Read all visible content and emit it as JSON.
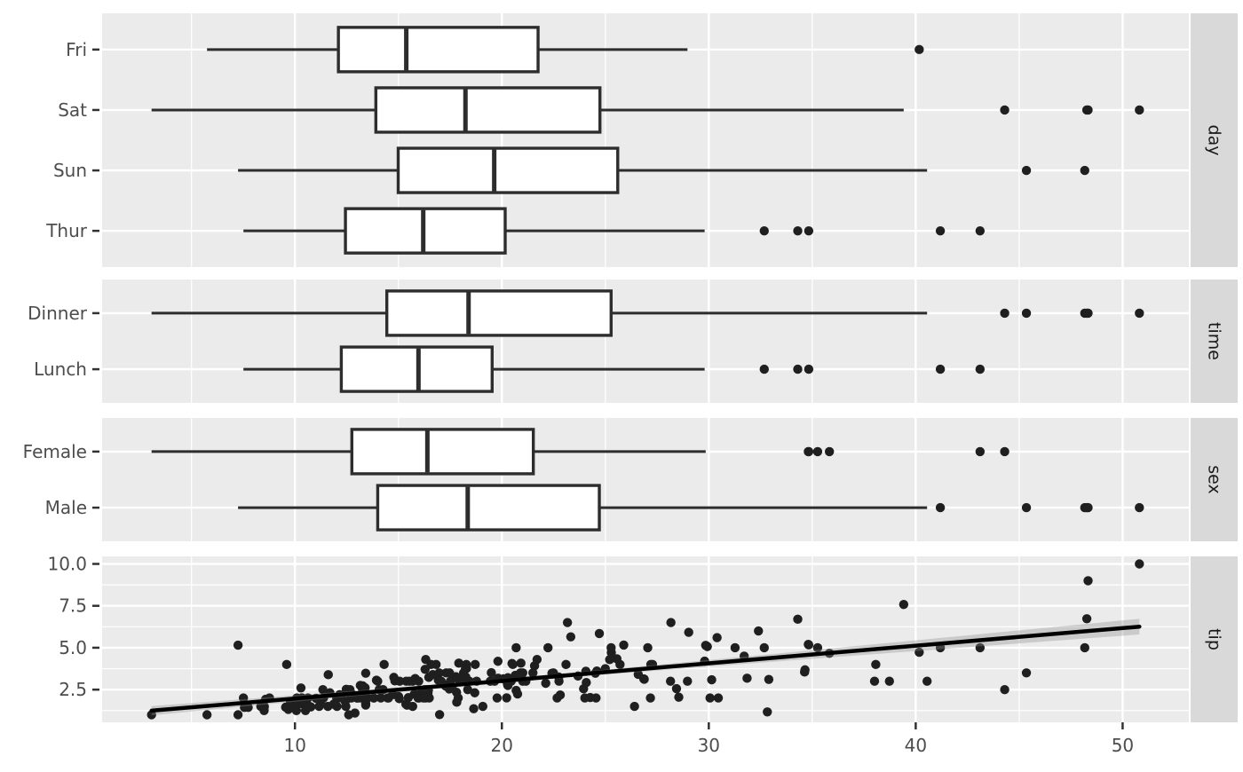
{
  "figure": {
    "background": "#ffffff",
    "panel_bg": "#ebebeb",
    "strip_bg": "#d9d9d9",
    "grid_color": "#ffffff",
    "box_stroke": "#2d2d2d",
    "box_fill": "#ffffff",
    "point_color": "#1f1f1f",
    "line_color": "#000000",
    "band_color": "#8c8c8c",
    "axis_text_color": "#4d4d4d",
    "tick_mark_color": "#333333",
    "strip_text_color": "#1a1a1a"
  },
  "axes": {
    "x": {
      "ticks": [
        10,
        20,
        30,
        40,
        50
      ],
      "minor_ticks": [
        5,
        15,
        25,
        35,
        45
      ],
      "range": [
        0.68,
        53.2
      ]
    }
  },
  "facets": [
    "day",
    "time",
    "sex",
    "tip"
  ],
  "chart_data": [
    {
      "type": "boxplot",
      "facet": "day",
      "orientation": "horizontal",
      "categories": [
        "Fri",
        "Sat",
        "Sun",
        "Thur"
      ],
      "boxes": [
        {
          "category": "Fri",
          "whisker_min": 5.75,
          "q1": 12.1,
          "median": 15.38,
          "q3": 21.75,
          "whisker_max": 28.97,
          "outliers": [
            40.17
          ]
        },
        {
          "category": "Sat",
          "whisker_min": 3.07,
          "q1": 13.91,
          "median": 18.24,
          "q3": 24.74,
          "whisker_max": 39.42,
          "outliers": [
            44.3,
            48.27,
            48.33,
            50.81
          ]
        },
        {
          "category": "Sun",
          "whisker_min": 7.25,
          "q1": 14.99,
          "median": 19.63,
          "q3": 25.6,
          "whisker_max": 40.55,
          "outliers": [
            45.35,
            48.17
          ]
        },
        {
          "category": "Thur",
          "whisker_min": 7.51,
          "q1": 12.44,
          "median": 16.2,
          "q3": 20.16,
          "whisker_max": 29.8,
          "outliers": [
            32.68,
            34.3,
            34.83,
            41.19,
            43.11
          ]
        }
      ]
    },
    {
      "type": "boxplot",
      "facet": "time",
      "orientation": "horizontal",
      "categories": [
        "Dinner",
        "Lunch"
      ],
      "boxes": [
        {
          "category": "Dinner",
          "whisker_min": 3.07,
          "q1": 14.44,
          "median": 18.39,
          "q3": 25.28,
          "whisker_max": 40.55,
          "outliers": [
            44.3,
            45.35,
            48.17,
            48.27,
            48.33,
            50.81
          ]
        },
        {
          "category": "Lunch",
          "whisker_min": 7.51,
          "q1": 12.24,
          "median": 15.97,
          "q3": 19.53,
          "whisker_max": 29.8,
          "outliers": [
            32.68,
            34.3,
            34.83,
            41.19,
            43.11
          ]
        }
      ]
    },
    {
      "type": "boxplot",
      "facet": "sex",
      "orientation": "horizontal",
      "categories": [
        "Female",
        "Male"
      ],
      "boxes": [
        {
          "category": "Female",
          "whisker_min": 3.07,
          "q1": 12.75,
          "median": 16.4,
          "q3": 21.52,
          "whisker_max": 29.85,
          "outliers": [
            34.81,
            34.83,
            35.26,
            35.83,
            43.11,
            44.3
          ]
        },
        {
          "category": "Male",
          "whisker_min": 7.25,
          "q1": 14.0,
          "median": 18.35,
          "q3": 24.71,
          "whisker_max": 40.55,
          "outliers": [
            41.19,
            45.35,
            48.17,
            48.27,
            48.33,
            50.81
          ]
        }
      ]
    },
    {
      "type": "scatter",
      "facet": "tip",
      "y_ticks": [
        2.5,
        5.0,
        7.5,
        10.0
      ],
      "y_minor_ticks": [
        1.25,
        3.75,
        6.25,
        8.75
      ],
      "y_range": [
        0.55,
        10.45
      ],
      "smooth": {
        "method": "linear",
        "show_band": true,
        "ci": 0.95
      },
      "points": [
        [
          16.99,
          1.01
        ],
        [
          10.34,
          1.66
        ],
        [
          21.01,
          3.5
        ],
        [
          23.68,
          3.31
        ],
        [
          24.59,
          3.61
        ],
        [
          25.29,
          4.71
        ],
        [
          8.77,
          2.0
        ],
        [
          26.88,
          3.12
        ],
        [
          15.04,
          1.96
        ],
        [
          14.78,
          3.23
        ],
        [
          10.27,
          1.71
        ],
        [
          35.26,
          5.0
        ],
        [
          15.42,
          1.57
        ],
        [
          18.43,
          3.0
        ],
        [
          14.83,
          3.02
        ],
        [
          21.58,
          3.92
        ],
        [
          10.33,
          1.67
        ],
        [
          16.29,
          3.71
        ],
        [
          16.97,
          3.5
        ],
        [
          20.65,
          3.35
        ],
        [
          17.92,
          4.08
        ],
        [
          20.29,
          2.75
        ],
        [
          15.77,
          2.23
        ],
        [
          39.42,
          7.58
        ],
        [
          19.82,
          3.18
        ],
        [
          17.81,
          2.34
        ],
        [
          13.37,
          2.0
        ],
        [
          12.69,
          2.0
        ],
        [
          21.7,
          4.3
        ],
        [
          19.65,
          3.0
        ],
        [
          9.55,
          1.45
        ],
        [
          18.35,
          2.5
        ],
        [
          15.06,
          3.0
        ],
        [
          20.69,
          2.45
        ],
        [
          17.78,
          3.27
        ],
        [
          24.06,
          3.6
        ],
        [
          16.31,
          2.0
        ],
        [
          16.93,
          3.07
        ],
        [
          18.69,
          2.31
        ],
        [
          31.27,
          5.0
        ],
        [
          16.04,
          2.24
        ],
        [
          17.46,
          2.54
        ],
        [
          13.94,
          3.06
        ],
        [
          9.68,
          1.32
        ],
        [
          30.4,
          5.6
        ],
        [
          18.29,
          3.0
        ],
        [
          22.23,
          5.0
        ],
        [
          32.4,
          6.0
        ],
        [
          28.55,
          2.05
        ],
        [
          18.04,
          3.0
        ],
        [
          12.54,
          2.5
        ],
        [
          10.29,
          2.6
        ],
        [
          34.81,
          5.2
        ],
        [
          9.94,
          1.56
        ],
        [
          25.56,
          4.34
        ],
        [
          19.49,
          3.51
        ],
        [
          38.01,
          3.0
        ],
        [
          26.41,
          1.5
        ],
        [
          11.24,
          1.76
        ],
        [
          48.27,
          6.73
        ],
        [
          20.29,
          3.21
        ],
        [
          13.81,
          2.0
        ],
        [
          11.02,
          1.98
        ],
        [
          18.29,
          3.76
        ],
        [
          17.59,
          2.64
        ],
        [
          20.08,
          3.15
        ],
        [
          16.45,
          2.47
        ],
        [
          3.07,
          1.0
        ],
        [
          20.23,
          2.01
        ],
        [
          15.01,
          2.09
        ],
        [
          12.02,
          1.97
        ],
        [
          17.07,
          3.0
        ],
        [
          26.86,
          3.14
        ],
        [
          25.28,
          5.0
        ],
        [
          14.73,
          2.2
        ],
        [
          10.51,
          1.25
        ],
        [
          17.92,
          3.08
        ],
        [
          27.2,
          4.0
        ],
        [
          22.76,
          3.0
        ],
        [
          17.29,
          2.71
        ],
        [
          19.44,
          3.0
        ],
        [
          16.66,
          3.4
        ],
        [
          10.07,
          1.83
        ],
        [
          32.68,
          5.0
        ],
        [
          15.98,
          2.03
        ],
        [
          34.83,
          5.17
        ],
        [
          13.03,
          2.0
        ],
        [
          18.28,
          4.0
        ],
        [
          24.71,
          5.85
        ],
        [
          21.16,
          3.0
        ],
        [
          28.97,
          3.0
        ],
        [
          22.49,
          3.5
        ],
        [
          5.75,
          1.0
        ],
        [
          16.32,
          4.3
        ],
        [
          22.75,
          3.25
        ],
        [
          40.17,
          4.73
        ],
        [
          27.28,
          4.0
        ],
        [
          12.03,
          1.5
        ],
        [
          21.01,
          3.0
        ],
        [
          12.46,
          1.5
        ],
        [
          11.35,
          2.5
        ],
        [
          15.38,
          3.0
        ],
        [
          44.3,
          2.5
        ],
        [
          22.42,
          3.48
        ],
        [
          20.92,
          4.08
        ],
        [
          15.36,
          1.64
        ],
        [
          20.49,
          4.06
        ],
        [
          25.21,
          4.29
        ],
        [
          18.24,
          3.76
        ],
        [
          14.31,
          4.0
        ],
        [
          14.0,
          3.0
        ],
        [
          7.25,
          1.0
        ],
        [
          38.07,
          4.0
        ],
        [
          23.95,
          2.55
        ],
        [
          25.71,
          4.0
        ],
        [
          17.31,
          3.5
        ],
        [
          29.93,
          5.07
        ],
        [
          10.65,
          1.5
        ],
        [
          12.43,
          1.8
        ],
        [
          24.08,
          2.92
        ],
        [
          11.69,
          2.31
        ],
        [
          13.42,
          1.68
        ],
        [
          14.26,
          2.5
        ],
        [
          15.95,
          2.0
        ],
        [
          12.48,
          2.52
        ],
        [
          29.8,
          4.2
        ],
        [
          8.52,
          1.48
        ],
        [
          14.52,
          2.0
        ],
        [
          11.38,
          2.0
        ],
        [
          22.82,
          2.18
        ],
        [
          19.08,
          1.5
        ],
        [
          20.27,
          2.83
        ],
        [
          11.17,
          1.5
        ],
        [
          12.26,
          2.0
        ],
        [
          18.26,
          3.25
        ],
        [
          8.51,
          1.25
        ],
        [
          10.33,
          2.0
        ],
        [
          14.15,
          2.0
        ],
        [
          16.0,
          2.0
        ],
        [
          13.16,
          2.75
        ],
        [
          17.47,
          3.5
        ],
        [
          34.3,
          6.7
        ],
        [
          41.19,
          5.0
        ],
        [
          27.05,
          5.0
        ],
        [
          16.43,
          2.3
        ],
        [
          8.35,
          1.5
        ],
        [
          18.64,
          1.36
        ],
        [
          11.87,
          1.63
        ],
        [
          9.78,
          1.73
        ],
        [
          7.51,
          2.0
        ],
        [
          14.07,
          2.5
        ],
        [
          13.13,
          2.0
        ],
        [
          17.26,
          2.74
        ],
        [
          24.55,
          2.0
        ],
        [
          19.77,
          2.0
        ],
        [
          29.85,
          5.14
        ],
        [
          48.17,
          5.0
        ],
        [
          25.0,
          3.75
        ],
        [
          13.39,
          2.61
        ],
        [
          16.49,
          2.0
        ],
        [
          21.5,
          3.5
        ],
        [
          12.66,
          2.5
        ],
        [
          16.21,
          2.0
        ],
        [
          13.81,
          2.0
        ],
        [
          17.51,
          3.0
        ],
        [
          24.52,
          3.48
        ],
        [
          20.76,
          2.24
        ],
        [
          31.71,
          4.5
        ],
        [
          10.59,
          1.61
        ],
        [
          10.63,
          2.0
        ],
        [
          50.81,
          10.0
        ],
        [
          15.81,
          3.16
        ],
        [
          7.25,
          5.15
        ],
        [
          31.85,
          3.18
        ],
        [
          16.82,
          4.0
        ],
        [
          32.9,
          3.11
        ],
        [
          17.89,
          2.0
        ],
        [
          14.48,
          2.0
        ],
        [
          9.6,
          4.0
        ],
        [
          34.63,
          3.55
        ],
        [
          34.65,
          3.68
        ],
        [
          23.33,
          5.65
        ],
        [
          45.35,
          3.5
        ],
        [
          23.17,
          6.5
        ],
        [
          40.55,
          3.0
        ],
        [
          20.69,
          5.0
        ],
        [
          20.9,
          3.5
        ],
        [
          30.46,
          2.0
        ],
        [
          18.15,
          3.5
        ],
        [
          23.1,
          4.0
        ],
        [
          15.69,
          1.5
        ],
        [
          19.81,
          4.19
        ],
        [
          28.44,
          2.56
        ],
        [
          15.48,
          2.02
        ],
        [
          16.58,
          4.0
        ],
        [
          7.56,
          1.44
        ],
        [
          10.34,
          2.0
        ],
        [
          43.11,
          5.0
        ],
        [
          13.0,
          2.0
        ],
        [
          13.51,
          2.0
        ],
        [
          18.71,
          4.0
        ],
        [
          12.74,
          2.01
        ],
        [
          13.0,
          2.0
        ],
        [
          16.4,
          2.5
        ],
        [
          20.53,
          4.0
        ],
        [
          16.47,
          3.23
        ],
        [
          26.59,
          3.41
        ],
        [
          38.73,
          3.0
        ],
        [
          24.27,
          2.03
        ],
        [
          12.76,
          2.23
        ],
        [
          30.06,
          2.0
        ],
        [
          25.89,
          5.16
        ],
        [
          48.33,
          9.0
        ],
        [
          13.27,
          2.5
        ],
        [
          28.17,
          6.5
        ],
        [
          12.9,
          1.1
        ],
        [
          28.15,
          3.0
        ],
        [
          11.59,
          1.5
        ],
        [
          7.74,
          1.44
        ],
        [
          30.14,
          3.09
        ],
        [
          12.16,
          2.2
        ],
        [
          13.42,
          3.48
        ],
        [
          8.58,
          1.92
        ],
        [
          15.98,
          3.0
        ],
        [
          13.42,
          1.58
        ],
        [
          16.27,
          2.5
        ],
        [
          10.09,
          2.0
        ],
        [
          20.45,
          3.0
        ],
        [
          13.28,
          2.72
        ],
        [
          22.12,
          2.88
        ],
        [
          24.01,
          2.0
        ],
        [
          15.69,
          3.0
        ],
        [
          11.61,
          3.39
        ],
        [
          10.77,
          1.47
        ],
        [
          15.53,
          3.0
        ],
        [
          10.07,
          1.25
        ],
        [
          12.6,
          1.0
        ],
        [
          32.83,
          1.17
        ],
        [
          35.83,
          4.67
        ],
        [
          29.03,
          5.92
        ],
        [
          27.18,
          2.0
        ],
        [
          22.67,
          2.0
        ],
        [
          17.82,
          1.75
        ],
        [
          18.78,
          3.0
        ]
      ]
    }
  ]
}
